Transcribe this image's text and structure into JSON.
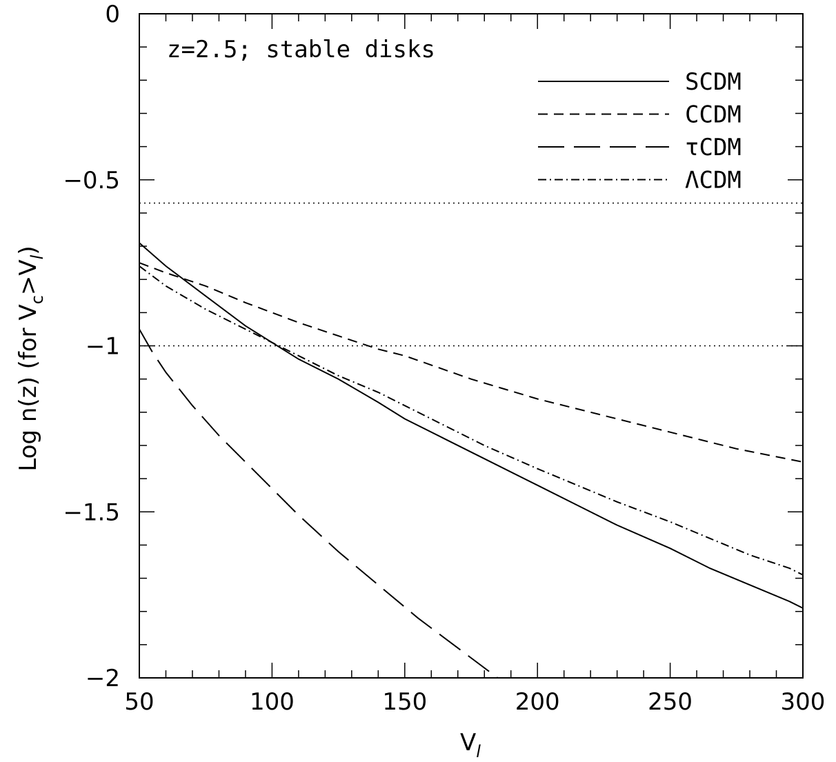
{
  "chart_data": {
    "type": "line",
    "annotation": "z=2.5; stable disks",
    "xlabel": "V",
    "xlabel_sub": "l",
    "ylabel": {
      "main": "Log n(z) (for V",
      "sub1": "c",
      "mid": ">V",
      "sub2": "l",
      "end": ")"
    },
    "xlim": [
      50,
      300
    ],
    "ylim": [
      -2,
      0
    ],
    "x_ticks": [
      50,
      100,
      150,
      200,
      250,
      300
    ],
    "x_tick_labels": [
      "50",
      "100",
      "150",
      "200",
      "250",
      "300"
    ],
    "y_ticks": [
      -2,
      -1.5,
      -1,
      -0.5,
      0
    ],
    "y_tick_labels": [
      "−2",
      "−1.5",
      "−1",
      "−0.5",
      "0"
    ],
    "reference_lines": [
      -0.57,
      -1.0
    ],
    "legend_position": "top-right",
    "series": [
      {
        "name": "SCDM",
        "dash": "solid",
        "x": [
          50,
          60,
          75,
          90,
          100,
          110,
          125,
          140,
          150,
          165,
          180,
          200,
          215,
          230,
          250,
          265,
          280,
          295,
          300
        ],
        "y": [
          -0.69,
          -0.76,
          -0.85,
          -0.94,
          -0.99,
          -1.04,
          -1.1,
          -1.17,
          -1.22,
          -1.28,
          -1.34,
          -1.42,
          -1.48,
          -1.54,
          -1.61,
          -1.67,
          -1.72,
          -1.77,
          -1.79
        ]
      },
      {
        "name": "CCDM",
        "dash": "short-dash",
        "x": [
          50,
          60,
          75,
          90,
          100,
          110,
          125,
          140,
          150,
          175,
          200,
          225,
          250,
          275,
          300
        ],
        "y": [
          -0.75,
          -0.78,
          -0.82,
          -0.87,
          -0.9,
          -0.93,
          -0.97,
          -1.01,
          -1.03,
          -1.1,
          -1.16,
          -1.21,
          -1.26,
          -1.31,
          -1.35
        ]
      },
      {
        "name": "τCDM",
        "dash": "long-dash",
        "x": [
          50,
          55,
          60,
          70,
          80,
          95,
          110,
          125,
          140,
          155,
          170,
          185
        ],
        "y": [
          -0.95,
          -1.02,
          -1.08,
          -1.18,
          -1.27,
          -1.39,
          -1.51,
          -1.62,
          -1.72,
          -1.82,
          -1.91,
          -2.0
        ]
      },
      {
        "name": "ΛCDM",
        "dash": "dash-dot",
        "x": [
          50,
          60,
          75,
          90,
          100,
          110,
          125,
          140,
          150,
          165,
          180,
          200,
          215,
          230,
          250,
          265,
          280,
          295,
          300
        ],
        "y": [
          -0.76,
          -0.82,
          -0.89,
          -0.95,
          -0.99,
          -1.03,
          -1.09,
          -1.14,
          -1.18,
          -1.24,
          -1.3,
          -1.37,
          -1.42,
          -1.47,
          -1.53,
          -1.58,
          -1.63,
          -1.67,
          -1.69
        ]
      }
    ]
  }
}
